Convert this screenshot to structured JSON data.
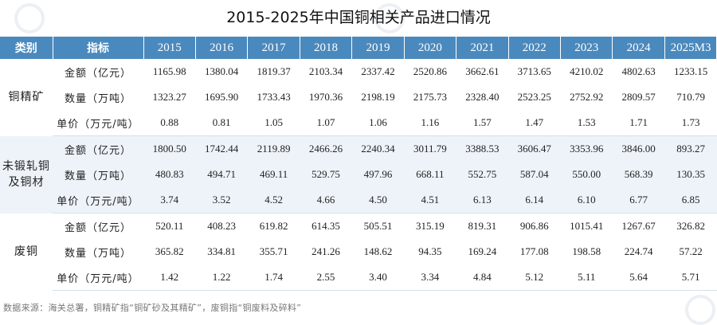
{
  "title": "2015-2025年中国铜相关产品进口情况",
  "header": {
    "category": "类别",
    "indicator": "指标",
    "years": [
      "2015",
      "2016",
      "2017",
      "2018",
      "2019",
      "2020",
      "2021",
      "2022",
      "2023",
      "2024",
      "2025M3"
    ]
  },
  "groups": [
    {
      "category_line1": "铜精矿",
      "category_line2": "",
      "rows": [
        {
          "indicator": "金额（亿元）",
          "values": [
            "1165.98",
            "1380.04",
            "1819.37",
            "2103.34",
            "2337.42",
            "2520.86",
            "3662.61",
            "3713.65",
            "4210.02",
            "4802.63",
            "1233.15"
          ]
        },
        {
          "indicator": "数量（万吨）",
          "values": [
            "1323.27",
            "1695.90",
            "1733.43",
            "1970.36",
            "2198.19",
            "2175.73",
            "2328.40",
            "2523.25",
            "2752.92",
            "2809.57",
            "710.79"
          ]
        },
        {
          "indicator": "单价（万元/吨）",
          "values": [
            "0.88",
            "0.81",
            "1.05",
            "1.07",
            "1.06",
            "1.16",
            "1.57",
            "1.47",
            "1.53",
            "1.71",
            "1.73"
          ]
        }
      ]
    },
    {
      "category_line1": "未锻轧铜",
      "category_line2": "及铜材",
      "rows": [
        {
          "indicator": "金额（亿元）",
          "values": [
            "1800.50",
            "1742.44",
            "2119.89",
            "2466.26",
            "2240.34",
            "3011.79",
            "3388.53",
            "3606.47",
            "3353.96",
            "3846.00",
            "893.27"
          ]
        },
        {
          "indicator": "数量（万吨）",
          "values": [
            "480.83",
            "494.71",
            "469.11",
            "529.75",
            "497.96",
            "668.11",
            "552.75",
            "587.04",
            "550.00",
            "568.39",
            "130.35"
          ]
        },
        {
          "indicator": "单价（万元/吨）",
          "values": [
            "3.74",
            "3.52",
            "4.52",
            "4.66",
            "4.50",
            "4.51",
            "6.13",
            "6.14",
            "6.10",
            "6.77",
            "6.85"
          ]
        }
      ]
    },
    {
      "category_line1": "废铜",
      "category_line2": "",
      "rows": [
        {
          "indicator": "金额（亿元）",
          "values": [
            "520.11",
            "408.23",
            "619.82",
            "614.35",
            "505.51",
            "315.19",
            "819.31",
            "906.86",
            "1015.41",
            "1267.67",
            "326.82"
          ]
        },
        {
          "indicator": "数量（万吨）",
          "values": [
            "365.82",
            "334.81",
            "355.71",
            "241.26",
            "148.62",
            "94.35",
            "169.24",
            "177.08",
            "198.58",
            "224.74",
            "57.22"
          ]
        },
        {
          "indicator": "单价（万元/吨）",
          "values": [
            "1.42",
            "1.22",
            "1.74",
            "2.55",
            "3.40",
            "3.34",
            "4.84",
            "5.12",
            "5.11",
            "5.64",
            "5.71"
          ]
        }
      ]
    }
  ],
  "footnote": "数据来源：海关总署，铜精矿指“铜矿砂及其精矿”，废铜指“铜废料及碎料”",
  "colors": {
    "header_bg": "#4a89bd",
    "band_bg": "#eef3f9"
  }
}
